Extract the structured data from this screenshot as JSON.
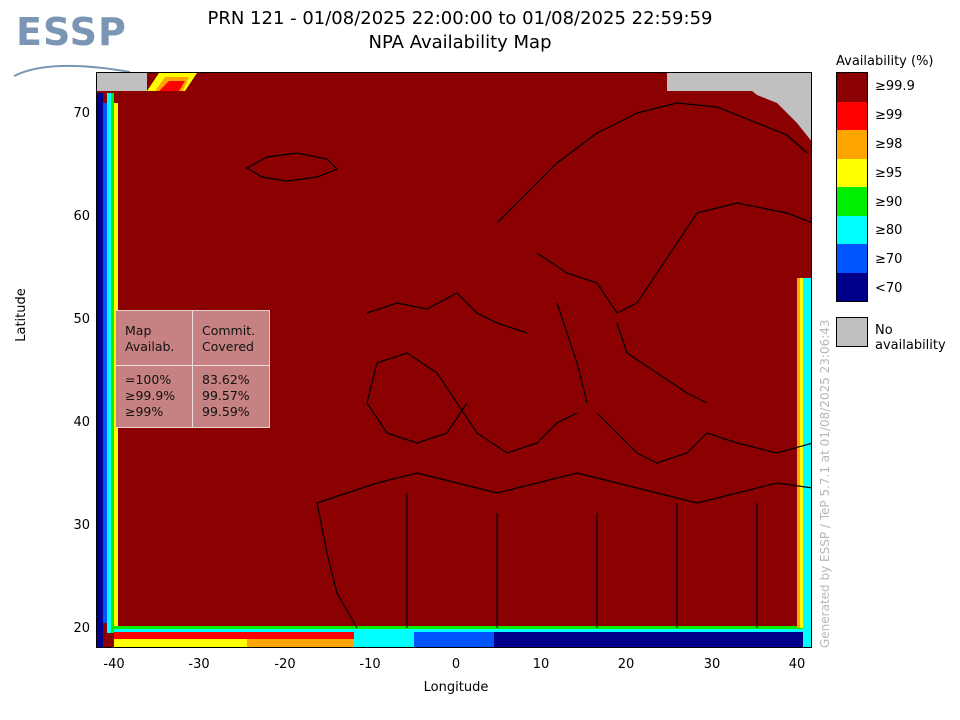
{
  "header": {
    "logo_text": "ESSP",
    "title_line1": "PRN 121 - 01/08/2025 22:00:00 to 01/08/2025 22:59:59",
    "title_line2": "NPA Availability Map"
  },
  "map": {
    "xlabel": "Longitude",
    "ylabel": "Latitude",
    "x_ticks": [
      "-40",
      "-30",
      "-20",
      "-10",
      "0",
      "10",
      "20",
      "30",
      "40"
    ],
    "y_ticks": [
      "70",
      "60",
      "50",
      "40",
      "30",
      "20"
    ],
    "x_range": [
      -42,
      42
    ],
    "y_range": [
      18,
      74
    ],
    "region_fill": "#8b0000"
  },
  "info_table": {
    "col1_header_1": "Map",
    "col1_header_2": "Availab.",
    "col2_header_1": "Commit.",
    "col2_header_2": "Covered",
    "rows": [
      {
        "map_avail": "=100%",
        "covered": "83.62%"
      },
      {
        "map_avail": "≥99.9%",
        "covered": "99.57%"
      },
      {
        "map_avail": "≥99%",
        "covered": "99.59%"
      }
    ]
  },
  "legend": {
    "title": "Availability (%)",
    "items": [
      {
        "label": "≥99.9",
        "color": "#8b0000"
      },
      {
        "label": "≥99",
        "color": "#ff0000"
      },
      {
        "label": "≥98",
        "color": "#ffa500"
      },
      {
        "label": "≥95",
        "color": "#ffff00"
      },
      {
        "label": "≥90",
        "color": "#00ee00"
      },
      {
        "label": "≥80",
        "color": "#00ffff"
      },
      {
        "label": "≥70",
        "color": "#0055ff"
      },
      {
        "label": "<70",
        "color": "#00008b"
      }
    ],
    "no_availability_label": "No availability",
    "no_availability_color": "#c0c0c0"
  },
  "footer": {
    "generated_by": "Generated by ESSP / TeP 5.7.1 at 01/08/2025 23:06:43"
  }
}
